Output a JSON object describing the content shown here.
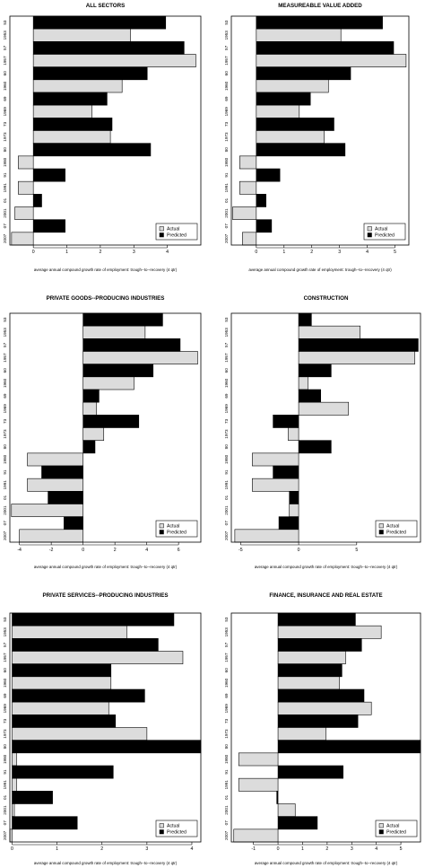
{
  "legend": {
    "actual": "Actual",
    "predicted": "Predicted"
  },
  "xlabel": "average annual compound growth rate of employment: trough--to--recovery (4 qtr)",
  "recession_labels": [
    "53",
    "1953",
    "57",
    "1957",
    "60",
    "1960",
    "69",
    "1969",
    "73",
    "1973",
    "80",
    "1980",
    "91",
    "1991",
    "01",
    "2001",
    "07",
    "2007"
  ],
  "colors": {
    "actual": "#dcdcdc",
    "predicted": "#000000",
    "frame": "#000000"
  },
  "chart_data": [
    {
      "type": "bar",
      "title": "ALL SECTORS",
      "categories": [
        "1953",
        "1957",
        "1960",
        "1969",
        "1973",
        "1980",
        "1991",
        "2001",
        "2007"
      ],
      "series": [
        {
          "name": "Actual",
          "values": [
            2.9,
            4.85,
            2.65,
            1.75,
            2.3,
            -0.45,
            -0.45,
            -0.55,
            -0.65
          ]
        },
        {
          "name": "Predicted",
          "values": [
            3.95,
            4.5,
            3.4,
            2.2,
            2.35,
            3.5,
            0.95,
            0.25,
            0.95
          ]
        }
      ],
      "xlim": [
        -0.7,
        5.0
      ],
      "xticks": [
        0,
        1,
        2,
        3,
        4
      ],
      "legend_position": "bottom-right"
    },
    {
      "type": "bar",
      "title": "MEASUREABLE VALUE ADDED",
      "categories": [
        "1953",
        "1957",
        "1960",
        "1969",
        "1973",
        "1980",
        "1991",
        "2001",
        "2007"
      ],
      "series": [
        {
          "name": "Actual",
          "values": [
            3.05,
            5.4,
            2.6,
            1.55,
            2.45,
            -0.6,
            -0.6,
            -0.85,
            -0.5
          ]
        },
        {
          "name": "Predicted",
          "values": [
            4.55,
            4.95,
            3.4,
            1.95,
            2.8,
            3.2,
            0.85,
            0.35,
            0.55
          ]
        }
      ],
      "xlim": [
        -0.9,
        5.5
      ],
      "xticks": [
        0,
        1,
        2,
        3,
        4,
        5
      ],
      "legend_position": "bottom-right"
    },
    {
      "type": "bar",
      "title": "PRIVATE GOODS--PRODUCING INDUSTRIES",
      "categories": [
        "1953",
        "1957",
        "1960",
        "1969",
        "1973",
        "1980",
        "1991",
        "2001",
        "2007"
      ],
      "series": [
        {
          "name": "Actual",
          "values": [
            3.9,
            7.2,
            3.2,
            0.85,
            1.3,
            -3.5,
            -3.5,
            -4.5,
            -4.0
          ]
        },
        {
          "name": "Predicted",
          "values": [
            5.0,
            6.1,
            4.4,
            1.0,
            3.5,
            0.75,
            -2.6,
            -2.2,
            -1.2
          ]
        }
      ],
      "xlim": [
        -4.6,
        7.4
      ],
      "xticks": [
        -4,
        -2,
        0,
        2,
        4,
        6
      ],
      "legend_position": "bottom-right"
    },
    {
      "type": "bar",
      "title": "CONSTRUCTION",
      "categories": [
        "1953",
        "1957",
        "1960",
        "1969",
        "1973",
        "1980",
        "1991",
        "2001",
        "2007"
      ],
      "series": [
        {
          "name": "Actual",
          "values": [
            5.3,
            10.0,
            0.8,
            4.3,
            -0.9,
            -4.0,
            -4.0,
            -0.8,
            -5.5
          ]
        },
        {
          "name": "Predicted",
          "values": [
            1.1,
            10.3,
            2.8,
            1.9,
            -2.2,
            2.8,
            -2.2,
            -0.8,
            -1.7
          ]
        }
      ],
      "xlim": [
        -5.8,
        10.5
      ],
      "xticks": [
        -5,
        0,
        5
      ],
      "legend_position": "bottom-right"
    },
    {
      "type": "bar",
      "title": "PRIVATE SERVICES--PRODUCING INDUSTRIES",
      "categories": [
        "1953",
        "1957",
        "1960",
        "1969",
        "1973",
        "1980",
        "1991",
        "2001",
        "2007"
      ],
      "series": [
        {
          "name": "Actual",
          "values": [
            2.55,
            3.8,
            2.2,
            2.15,
            3.0,
            0.1,
            0.1,
            0.05,
            -0.05
          ]
        },
        {
          "name": "Predicted",
          "values": [
            3.6,
            3.25,
            2.2,
            2.95,
            2.3,
            4.2,
            2.25,
            0.9,
            1.45
          ]
        }
      ],
      "xlim": [
        -0.05,
        4.2
      ],
      "xticks": [
        0,
        1,
        2,
        3,
        4
      ],
      "legend_position": "bottom-right"
    },
    {
      "type": "bar",
      "title": "FINANCE, INSURANCE AND REAL ESTATE",
      "categories": [
        "1953",
        "1957",
        "1960",
        "1969",
        "1973",
        "1980",
        "1991",
        "2001",
        "2007"
      ],
      "series": [
        {
          "name": "Actual",
          "values": [
            4.2,
            2.75,
            2.5,
            3.8,
            1.95,
            -1.6,
            -1.6,
            0.7,
            -1.8
          ]
        },
        {
          "name": "Predicted",
          "values": [
            3.15,
            3.4,
            2.6,
            3.5,
            3.25,
            5.8,
            2.65,
            -0.05,
            1.6
          ]
        }
      ],
      "xlim": [
        -1.9,
        5.8
      ],
      "xticks": [
        -1,
        0,
        1,
        2,
        3,
        4,
        5
      ],
      "legend_position": "bottom-right"
    }
  ]
}
